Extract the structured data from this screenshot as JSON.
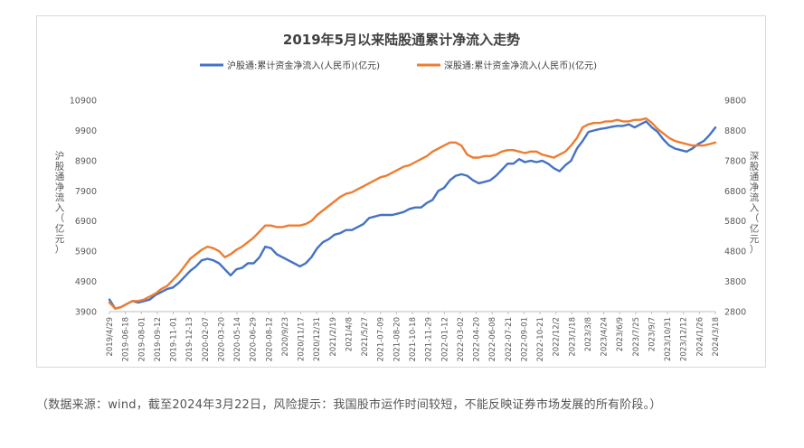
{
  "caption": "（数据来源：wind，截至2024年3月22日，风险提示：我国股市运作时间较短，不能反映证券市场发展的所有阶段。）",
  "chart_data": {
    "type": "line",
    "title": "2019年5月以来陆股通累计净流入走势",
    "legend_position": "top",
    "grid": false,
    "left_axis": {
      "label_chars": [
        "沪",
        "股",
        "通",
        "净",
        "流",
        "入",
        "（",
        "亿",
        "元",
        "）"
      ],
      "ylim": [
        3900,
        10900
      ],
      "ticks": [
        "3900",
        "4900",
        "5900",
        "6900",
        "7900",
        "8900",
        "9900",
        "10900"
      ]
    },
    "right_axis": {
      "label_chars": [
        "深",
        "股",
        "通",
        "净",
        "流",
        "入",
        "（",
        "亿",
        "元",
        "）"
      ],
      "ylim": [
        2800,
        9800
      ],
      "ticks": [
        "2800",
        "3800",
        "4800",
        "5800",
        "6800",
        "7800",
        "8800",
        "9800"
      ]
    },
    "x_ticks": [
      "2019/4/29",
      "2019-06-18",
      "2019-08-01",
      "2019-09-12",
      "2019-11-01",
      "2019-12-13",
      "2020-02-07",
      "2020-03-20",
      "2020-05-14",
      "2020-06-29",
      "2020-08-12",
      "2020/9/23",
      "2020/11/17",
      "2020/12/31",
      "2021/2/19",
      "2021/4/8",
      "2021/5/27",
      "2021-07-09",
      "2021-08-20",
      "2021-10-18",
      "2021-11-29",
      "2022-01-12",
      "2022-03-02",
      "2022-04-20",
      "2022-06-08",
      "2022-07-21",
      "2022-09-01",
      "2022-10-21",
      "2022/12/2",
      "2023/1/18",
      "2023/3/8",
      "2023/4/24",
      "2023/6/9",
      "2023/7/25",
      "2023/9/7",
      "2023/10/31",
      "2023/12/12",
      "2024/1/26",
      "2024/3/18"
    ],
    "series": [
      {
        "name": "沪股通:累计资金净流入(人民币)(亿元)",
        "axis": "left",
        "color": "#4472C4",
        "values": [
          4300,
          4000,
          4050,
          4150,
          4250,
          4200,
          4250,
          4300,
          4450,
          4550,
          4650,
          4700,
          4850,
          5050,
          5250,
          5400,
          5600,
          5650,
          5600,
          5500,
          5300,
          5100,
          5300,
          5350,
          5500,
          5500,
          5700,
          6050,
          6000,
          5800,
          5700,
          5600,
          5500,
          5400,
          5500,
          5700,
          6000,
          6200,
          6300,
          6450,
          6500,
          6600,
          6600,
          6700,
          6800,
          7000,
          7050,
          7100,
          7100,
          7100,
          7150,
          7200,
          7300,
          7350,
          7350,
          7500,
          7600,
          7900,
          8000,
          8250,
          8400,
          8450,
          8400,
          8250,
          8150,
          8200,
          8250,
          8400,
          8600,
          8800,
          8800,
          8950,
          8850,
          8900,
          8850,
          8900,
          8800,
          8650,
          8550,
          8750,
          8900,
          9300,
          9550,
          9850,
          9900,
          9950,
          9980,
          10020,
          10050,
          10050,
          10100,
          10000,
          10100,
          10200,
          10000,
          9850,
          9600,
          9400,
          9300,
          9250,
          9200,
          9300,
          9450,
          9550,
          9750,
          10000
        ]
      },
      {
        "name": "深股通:累计资金净流入(人民币)(亿元)",
        "axis": "right",
        "color": "#ED7D31",
        "values": [
          3100,
          2900,
          2950,
          3050,
          3150,
          3150,
          3200,
          3300,
          3400,
          3550,
          3650,
          3850,
          4050,
          4300,
          4550,
          4700,
          4850,
          4950,
          4900,
          4800,
          4600,
          4700,
          4850,
          4950,
          5100,
          5250,
          5450,
          5650,
          5650,
          5600,
          5600,
          5650,
          5650,
          5650,
          5700,
          5800,
          6000,
          6150,
          6300,
          6450,
          6600,
          6700,
          6750,
          6850,
          6950,
          7050,
          7150,
          7250,
          7300,
          7400,
          7500,
          7600,
          7650,
          7750,
          7850,
          7950,
          8100,
          8200,
          8300,
          8400,
          8400,
          8300,
          8000,
          7900,
          7900,
          7950,
          7950,
          8000,
          8100,
          8150,
          8150,
          8100,
          8050,
          8100,
          8100,
          8000,
          7950,
          7900,
          8000,
          8100,
          8300,
          8550,
          8900,
          9000,
          9050,
          9050,
          9100,
          9100,
          9150,
          9100,
          9100,
          9150,
          9150,
          9200,
          9050,
          8850,
          8700,
          8550,
          8450,
          8400,
          8350,
          8300,
          8300,
          8300,
          8350,
          8400
        ]
      }
    ]
  }
}
